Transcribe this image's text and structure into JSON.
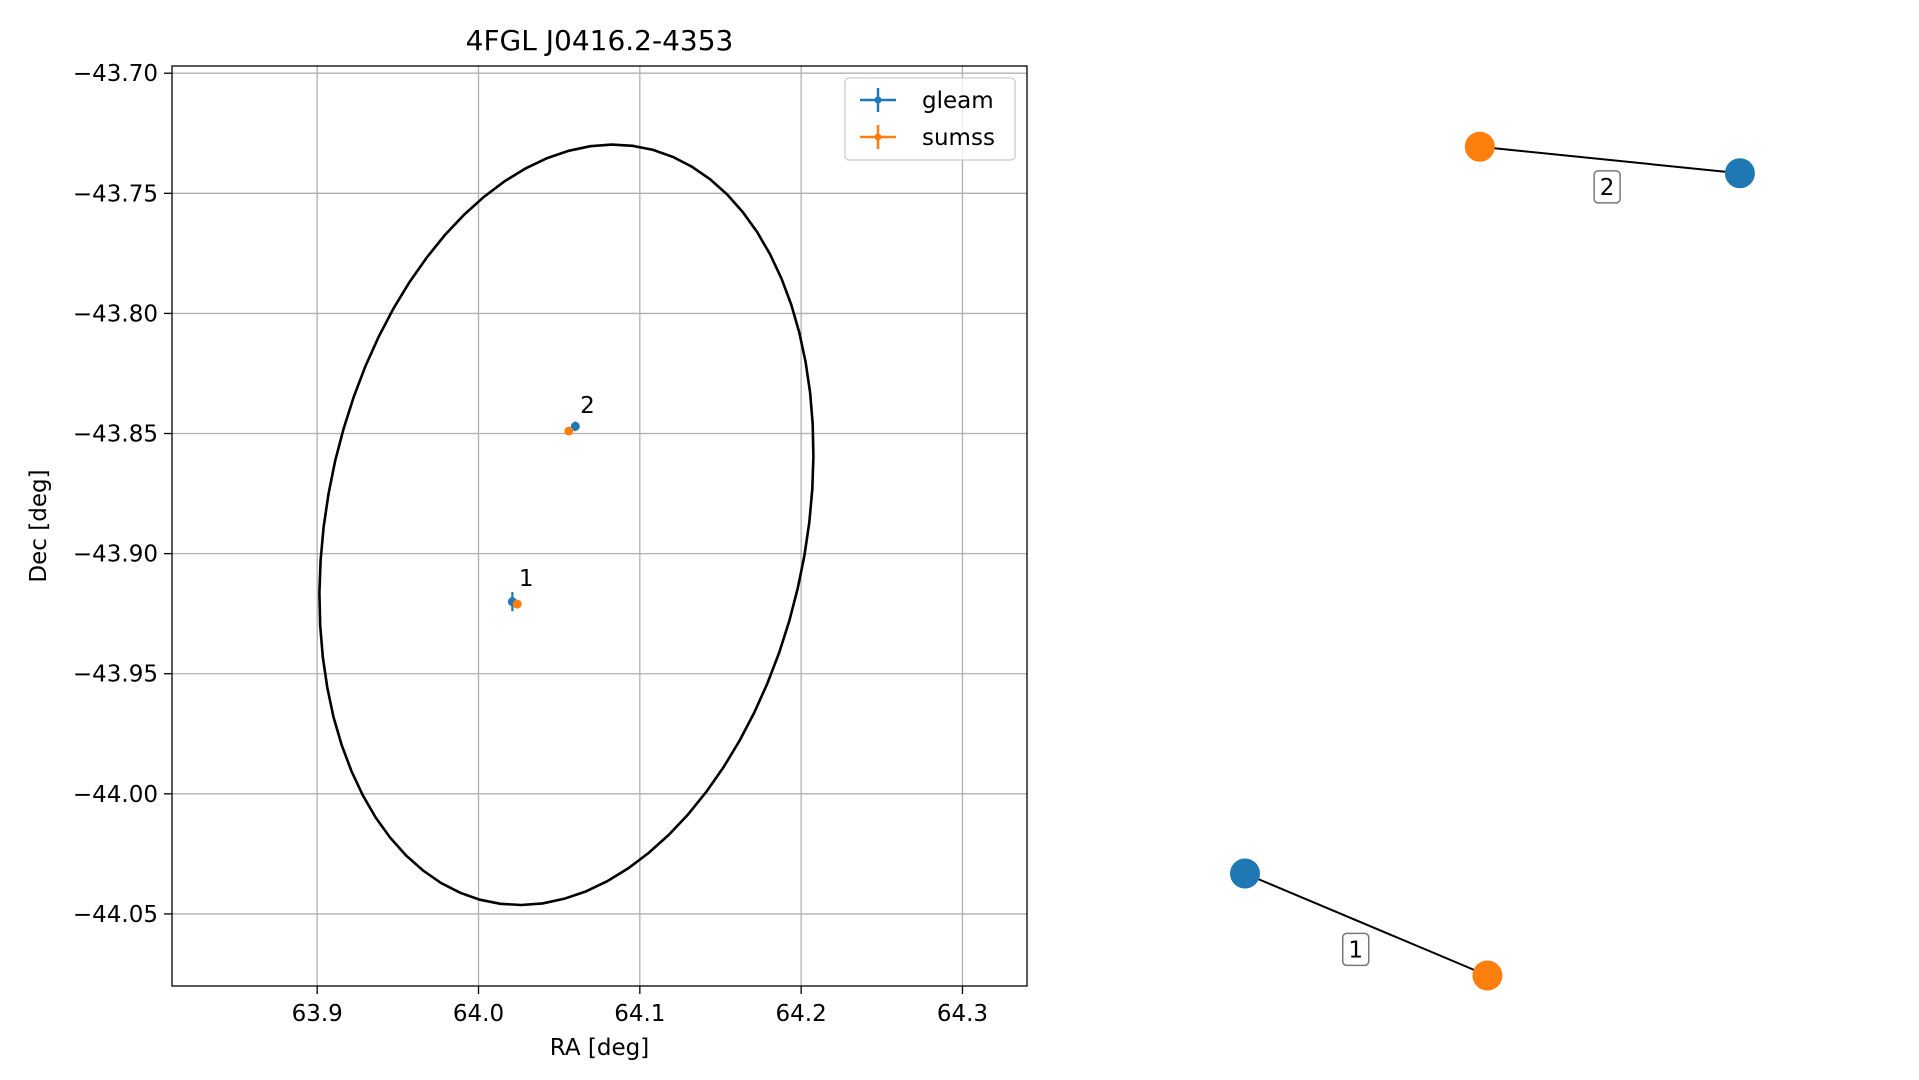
{
  "colors": {
    "gleam": "#1f77b4",
    "sumss": "#ff7f0e",
    "ellipse": "#000000",
    "grid": "#b0b0b0"
  },
  "chart_data": [
    {
      "type": "scatter",
      "title": "4FGL J0416.2-4353",
      "xlabel": "RA [deg]",
      "ylabel": "Dec [deg]",
      "xlim": [
        63.81,
        64.34
      ],
      "ylim": [
        -44.08,
        -43.697
      ],
      "xticks": [
        63.9,
        64.0,
        64.1,
        64.2,
        64.3
      ],
      "xtick_labels": [
        "63.9",
        "64.0",
        "64.1",
        "64.2",
        "64.3"
      ],
      "yticks": [
        -43.7,
        -43.75,
        -43.8,
        -43.85,
        -43.9,
        -43.95,
        -44.0,
        -44.05
      ],
      "ytick_labels": [
        "−43.70",
        "−43.75",
        "−43.80",
        "−43.85",
        "−43.90",
        "−43.95",
        "−44.00",
        "−44.05"
      ],
      "grid": true,
      "legend": {
        "position": "top-right",
        "entries": [
          "gleam",
          "sumss"
        ]
      },
      "series": [
        {
          "name": "gleam",
          "points": [
            {
              "x": 64.021,
              "y": -43.92,
              "xerr": 0.001,
              "yerr": 0.004
            },
            {
              "x": 64.06,
              "y": -43.847,
              "xerr": 0.001,
              "yerr": 0.002
            }
          ]
        },
        {
          "name": "sumss",
          "points": [
            {
              "x": 64.024,
              "y": -43.921,
              "xerr": 0.001,
              "yerr": 0.001
            },
            {
              "x": 64.056,
              "y": -43.849,
              "xerr": 0.001,
              "yerr": 0.001
            }
          ]
        }
      ],
      "annotations": [
        {
          "text": "1",
          "x": 64.025,
          "y": -43.9135
        },
        {
          "text": "2",
          "x": 64.063,
          "y": -43.8415
        }
      ],
      "ellipse": {
        "center": {
          "x": 64.0545,
          "y": -43.888
        },
        "semi_axes": [
          0.14,
          0.17
        ],
        "angle_deg": -40
      }
    },
    {
      "type": "network",
      "nodes": [
        {
          "id": "gleam-1",
          "catalog": "gleam",
          "x": 0.0,
          "y": 0.15
        },
        {
          "id": "sumss-1",
          "catalog": "sumss",
          "x": 0.48,
          "y": -0.05
        },
        {
          "id": "sumss-2",
          "catalog": "sumss",
          "x": 0.465,
          "y": 1.575
        },
        {
          "id": "gleam-2",
          "catalog": "gleam",
          "x": 0.98,
          "y": 1.523
        }
      ],
      "edges": [
        {
          "source": "gleam-1",
          "target": "sumss-1",
          "label": "1"
        },
        {
          "source": "sumss-2",
          "target": "gleam-2",
          "label": "2"
        }
      ]
    }
  ]
}
